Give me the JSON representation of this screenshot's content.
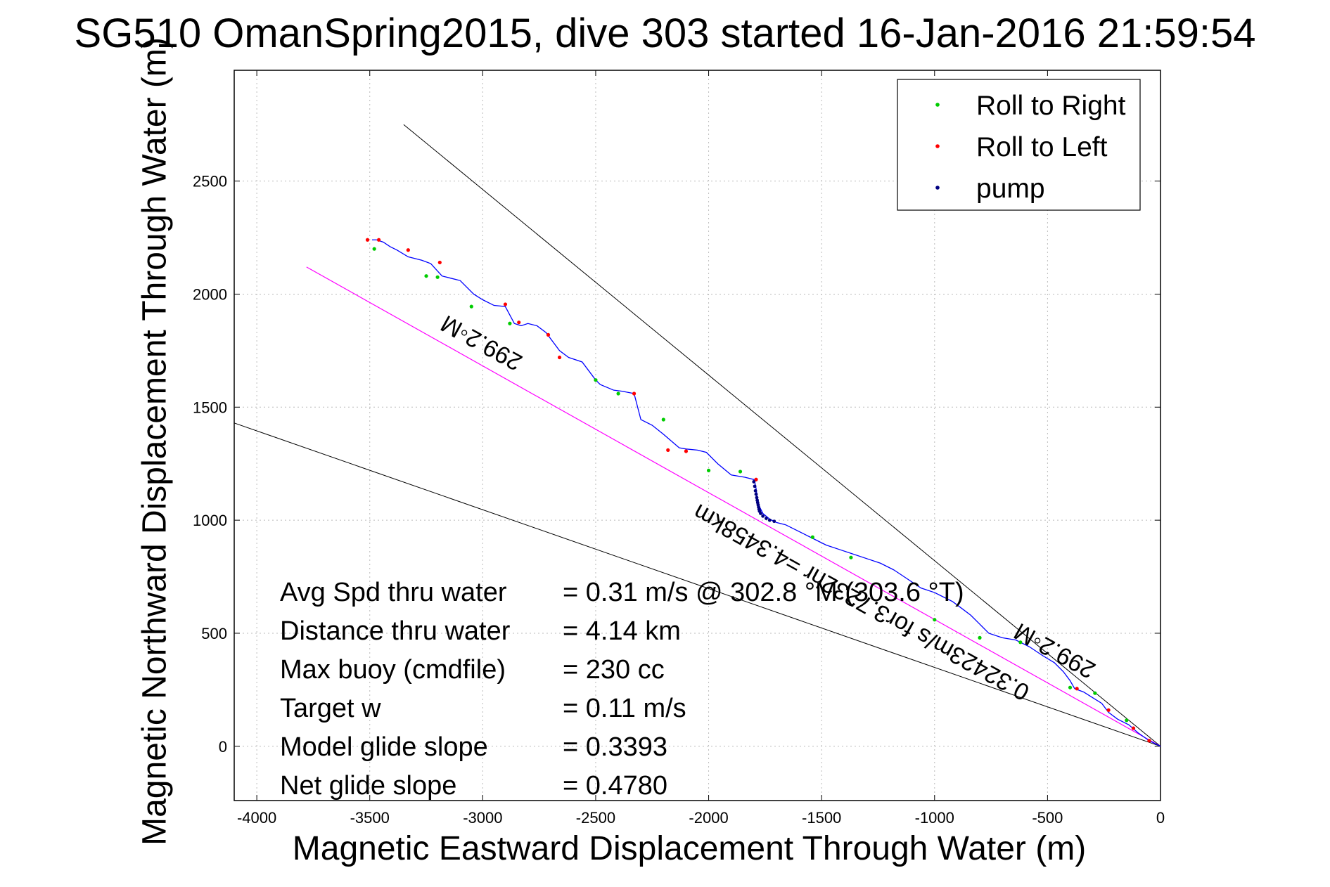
{
  "chart_data": {
    "type": "scatter",
    "title": "SG510 OmanSpring2015, dive 303 started 16-Jan-2016 21:59:54",
    "xlabel": "Magnetic Eastward Displacement Through Water (m)",
    "ylabel": "Magnetic Northward Displacement Through Water (m)",
    "xlim": [
      -4100,
      0
    ],
    "ylim": [
      -240,
      2990
    ],
    "xticks": [
      -4000,
      -3500,
      -3000,
      -2500,
      -2000,
      -1500,
      -1000,
      -500,
      0
    ],
    "yticks": [
      0,
      500,
      1000,
      1500,
      2000,
      2500
    ],
    "grid": true,
    "legend_position": "top-right",
    "track": {
      "name": "track",
      "color": "#0000ff",
      "x": [
        0,
        -50,
        -100,
        -140,
        -190,
        -230,
        -260,
        -300,
        -340,
        -380,
        -400,
        -430,
        -470,
        -520,
        -580,
        -640,
        -700,
        -760,
        -800,
        -840,
        -880,
        -920,
        -960,
        -1000,
        -1060,
        -1120,
        -1180,
        -1240,
        -1300,
        -1360,
        -1420,
        -1480,
        -1540,
        -1600,
        -1660,
        -1700,
        -1730,
        -1760,
        -1775,
        -1785,
        -1790,
        -1795,
        -1800,
        -1840,
        -1900,
        -1960,
        -2010,
        -2050,
        -2100,
        -2130,
        -2200,
        -2250,
        -2300,
        -2330,
        -2380,
        -2420,
        -2480,
        -2500,
        -2560,
        -2620,
        -2660,
        -2720,
        -2760,
        -2800,
        -2830,
        -2860,
        -2900,
        -2950,
        -3000,
        -3040,
        -3100,
        -3140,
        -3180,
        -3230,
        -3270,
        -3330,
        -3380,
        -3410,
        -3440,
        -3470,
        -3490
      ],
      "y": [
        0,
        25,
        60,
        95,
        120,
        150,
        190,
        215,
        240,
        255,
        290,
        330,
        370,
        400,
        440,
        470,
        480,
        500,
        540,
        580,
        610,
        640,
        660,
        680,
        700,
        740,
        780,
        810,
        830,
        850,
        870,
        890,
        920,
        950,
        980,
        990,
        1005,
        1030,
        1060,
        1100,
        1140,
        1165,
        1180,
        1190,
        1200,
        1250,
        1300,
        1310,
        1315,
        1320,
        1380,
        1420,
        1445,
        1560,
        1570,
        1575,
        1600,
        1620,
        1700,
        1720,
        1750,
        1830,
        1860,
        1870,
        1860,
        1870,
        1945,
        1950,
        1975,
        2000,
        2060,
        2070,
        2080,
        2135,
        2150,
        2165,
        2195,
        2210,
        2230,
        2240,
        2240
      ]
    },
    "roll_right": {
      "name": "Roll to Right",
      "color": "#00cc00",
      "x": [
        -150,
        -290,
        -400,
        -620,
        -800,
        -1000,
        -1370,
        -1540,
        -1860,
        -2000,
        -2200,
        -2400,
        -2500,
        -2880,
        -3050,
        -3200,
        -3250,
        -3480
      ],
      "y": [
        115,
        235,
        260,
        460,
        480,
        560,
        835,
        925,
        1215,
        1220,
        1445,
        1560,
        1620,
        1870,
        1945,
        2075,
        2080,
        2200
      ]
    },
    "roll_left": {
      "name": "Roll to Left",
      "color": "#ff0000",
      "x": [
        -50,
        -120,
        -230,
        -370,
        -1790,
        -2100,
        -2180,
        -2330,
        -2660,
        -2710,
        -2840,
        -2900,
        -3190,
        -3330,
        -3460,
        -3510
      ],
      "y": [
        25,
        80,
        160,
        255,
        1180,
        1305,
        1310,
        1560,
        1720,
        1820,
        1875,
        1955,
        2140,
        2195,
        2240,
        2240
      ]
    },
    "pump": {
      "name": "pump",
      "color": "#000080",
      "x": [
        -1800,
        -1796,
        -1793,
        -1790,
        -1787,
        -1785,
        -1783,
        -1781,
        -1779,
        -1777,
        -1775,
        -1770,
        -1760,
        -1745,
        -1730,
        -1710
      ],
      "y": [
        1170,
        1150,
        1130,
        1115,
        1100,
        1088,
        1078,
        1068,
        1058,
        1048,
        1040,
        1030,
        1018,
        1008,
        1000,
        995
      ]
    },
    "heading_line": {
      "color": "#ff00ff",
      "x": [
        0,
        -3780
      ],
      "y": [
        0,
        2120
      ],
      "label": "0.32423m/s for3.7232hr =4.3458km"
    },
    "cone_upper": {
      "color": "#000000",
      "x": [
        0,
        -3350
      ],
      "y": [
        0,
        2750
      ]
    },
    "cone_lower": {
      "color": "#000000",
      "x": [
        0,
        -4100
      ],
      "y": [
        0,
        1430
      ]
    },
    "heading_labels": [
      "299.2◦M",
      "299.2◦M"
    ]
  },
  "legend": [
    {
      "label": "Roll to Right",
      "color": "#00cc00"
    },
    {
      "label": "Roll to Left",
      "color": "#ff0000"
    },
    {
      "label": "pump",
      "color": "#000080"
    }
  ],
  "stats": [
    {
      "label": "Avg Spd thru water",
      "value": "=  0.31 m/s @ 302.8  °M (303.6 °T)"
    },
    {
      "label": "Distance thru water",
      "value": "=  4.14 km"
    },
    {
      "label": "Max buoy (cmdfile)",
      "value": "= 230 cc"
    },
    {
      "label": "Target w",
      "value": "= 0.11 m/s"
    },
    {
      "label": "Model glide slope",
      "value": "= 0.3393"
    },
    {
      "label": "Net glide slope",
      "value": "= 0.4780"
    }
  ]
}
